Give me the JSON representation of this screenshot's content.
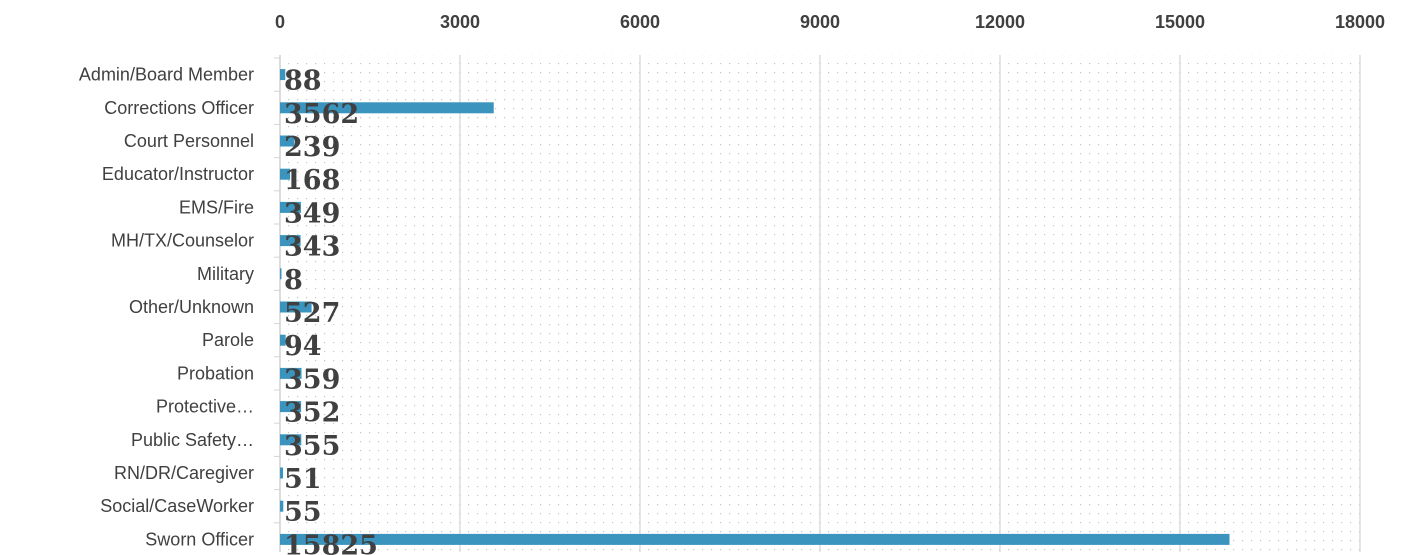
{
  "chart_data": {
    "type": "bar",
    "orientation": "horizontal",
    "categories": [
      "Admin/Board Member",
      "Corrections Officer",
      "Court Personnel",
      "Educator/Instructor",
      "EMS/Fire",
      "MH/TX/Counselor",
      "Military",
      "Other/Unknown",
      "Parole",
      "Probation",
      "Protective…",
      "Public Safety…",
      "RN/DR/Caregiver",
      "Social/CaseWorker",
      "Sworn Officer"
    ],
    "values": [
      88,
      3562,
      239,
      168,
      349,
      343,
      8,
      527,
      94,
      359,
      352,
      355,
      51,
      55,
      15825
    ],
    "data_labels": [
      "88",
      "3562",
      "239",
      "168",
      "349",
      "343",
      "8",
      "527",
      "94",
      "359",
      "352",
      "355",
      "51",
      "55",
      "15825"
    ],
    "xaxis": {
      "position": "top",
      "ticks": [
        0,
        3000,
        6000,
        9000,
        12000,
        15000,
        18000
      ],
      "tick_labels": [
        "0",
        "3000",
        "6000",
        "9000",
        "12000",
        "15000",
        "18000"
      ],
      "range": [
        0,
        18000
      ]
    },
    "grid": true,
    "legend": "none",
    "colors": {
      "bar": "#3a94bd",
      "gridline": "#d4d4d4",
      "dots": "#c8c8c8",
      "text": "#404040"
    }
  }
}
